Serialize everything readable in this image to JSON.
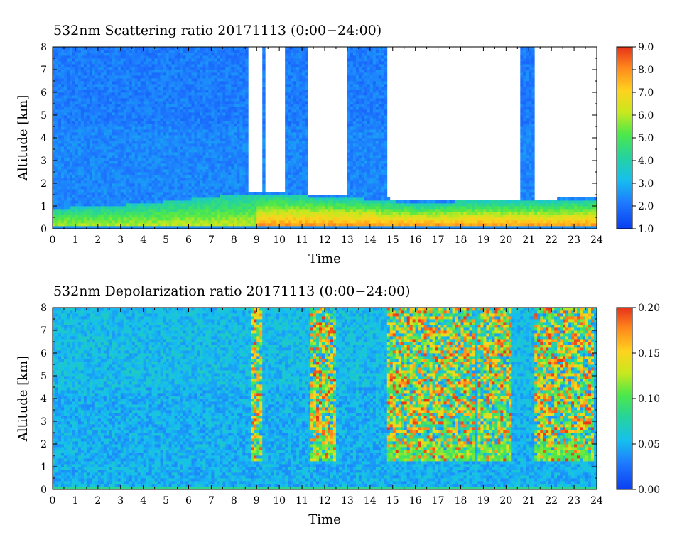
{
  "chart_data": [
    {
      "type": "heatmap",
      "title": "532nm Scattering ratio  20171113 (0:00−24:00)",
      "xlabel": "Time",
      "ylabel": "Altitude [km]",
      "xlim": [
        0,
        24
      ],
      "ylim": [
        0,
        8
      ],
      "x_ticks": [
        "0",
        "1",
        "2",
        "3",
        "4",
        "5",
        "6",
        "7",
        "8",
        "9",
        "10",
        "11",
        "12",
        "13",
        "14",
        "15",
        "16",
        "17",
        "18",
        "19",
        "20",
        "21",
        "22",
        "23",
        "24"
      ],
      "y_ticks": [
        "0",
        "1",
        "2",
        "3",
        "4",
        "5",
        "6",
        "7",
        "8"
      ],
      "colorbar": {
        "min": 1.0,
        "max": 9.0,
        "ticks": [
          "1.0",
          "2.0",
          "3.0",
          "4.0",
          "5.0",
          "6.0",
          "7.0",
          "8.0",
          "9.0"
        ]
      },
      "grid": false,
      "no_data_color": "#ffffff",
      "features": {
        "background_value": 2.0,
        "boundary_layer_top_km": [
          [
            0,
            0.9
          ],
          [
            2,
            1.0
          ],
          [
            4,
            1.1
          ],
          [
            6,
            1.3
          ],
          [
            8,
            1.5
          ],
          [
            10,
            1.5
          ],
          [
            12,
            1.4
          ],
          [
            14,
            1.3
          ],
          [
            16,
            1.1
          ],
          [
            18,
            1.2
          ],
          [
            20,
            1.2
          ],
          [
            22,
            1.2
          ],
          [
            24,
            1.3
          ]
        ],
        "cloud_blocks_white": [
          [
            8.65,
            9.2
          ],
          [
            9.4,
            10.3
          ],
          [
            11.2,
            13.0
          ],
          [
            14.8,
            20.6
          ],
          [
            21.2,
            24.0
          ]
        ]
      }
    },
    {
      "type": "heatmap",
      "title": "532nm Depolarization ratio  20171113 (0:00−24:00)",
      "xlabel": "Time",
      "ylabel": "Altitude [km]",
      "xlim": [
        0,
        24
      ],
      "ylim": [
        0,
        8
      ],
      "x_ticks": [
        "0",
        "1",
        "2",
        "3",
        "4",
        "5",
        "6",
        "7",
        "8",
        "9",
        "10",
        "11",
        "12",
        "13",
        "14",
        "15",
        "16",
        "17",
        "18",
        "19",
        "20",
        "21",
        "22",
        "23",
        "24"
      ],
      "y_ticks": [
        "0",
        "1",
        "2",
        "3",
        "4",
        "5",
        "6",
        "7",
        "8"
      ],
      "colorbar": {
        "min": 0.0,
        "max": 0.2,
        "ticks": [
          "0.00",
          "0.05",
          "0.10",
          "0.15",
          "0.20"
        ]
      },
      "grid": false,
      "features": {
        "background_value": 0.03,
        "noisy_high_segments": [
          [
            8.7,
            9.2
          ],
          [
            11.4,
            12.5
          ],
          [
            14.8,
            18.6
          ],
          [
            18.8,
            20.2
          ],
          [
            21.3,
            23.9
          ]
        ]
      }
    }
  ],
  "colors": {
    "scale": [
      "#0a3ef0",
      "#1e78ff",
      "#16c0ee",
      "#26d49a",
      "#4de84a",
      "#c8e81e",
      "#ffd21e",
      "#ff8c1c",
      "#e8321a"
    ],
    "axis": "#000000",
    "background": "#ffffff"
  }
}
